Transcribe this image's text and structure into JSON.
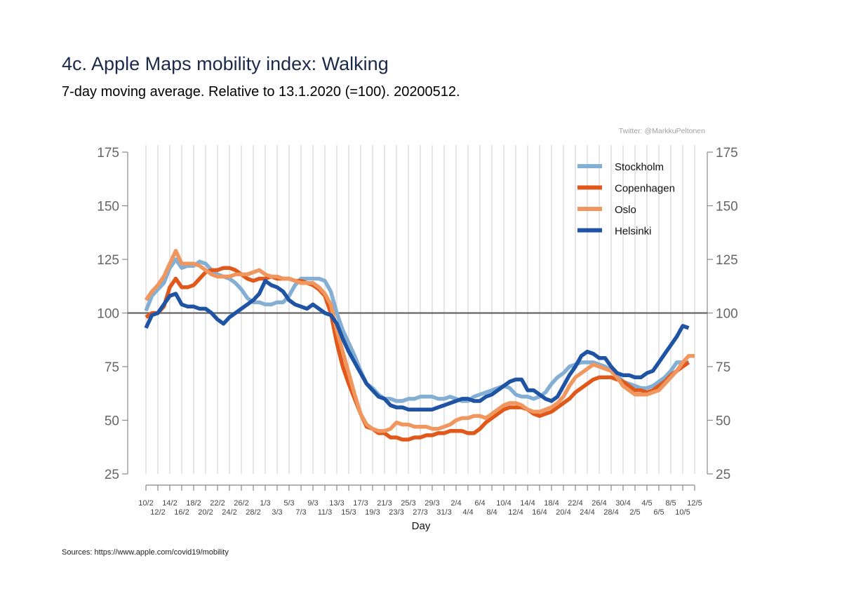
{
  "title": "4c. Apple Maps mobility index: Walking",
  "subtitle": "7-day moving average. Relative to 13.1.2020 (=100). 20200512.",
  "credit": "Twitter: @MarkkuPeltonen",
  "source": "Sources: https://www.apple.com/covid19/mobility",
  "chart_data": {
    "type": "line",
    "xlabel": "Day",
    "ylabel": "",
    "ylim": [
      25,
      175
    ],
    "yticks": [
      25,
      50,
      75,
      100,
      125,
      150,
      175
    ],
    "reference_line": 100,
    "grid": "vertical",
    "legend_position": "top-right",
    "x": [
      "10/2",
      "11/2",
      "12/2",
      "13/2",
      "14/2",
      "15/2",
      "16/2",
      "17/2",
      "18/2",
      "19/2",
      "20/2",
      "21/2",
      "22/2",
      "23/2",
      "24/2",
      "25/2",
      "26/2",
      "27/2",
      "28/2",
      "29/2",
      "1/3",
      "2/3",
      "3/3",
      "4/3",
      "5/3",
      "6/3",
      "7/3",
      "8/3",
      "9/3",
      "10/3",
      "11/3",
      "12/3",
      "13/3",
      "14/3",
      "15/3",
      "16/3",
      "17/3",
      "18/3",
      "19/3",
      "20/3",
      "21/3",
      "22/3",
      "23/3",
      "24/3",
      "25/3",
      "26/3",
      "27/3",
      "28/3",
      "29/3",
      "30/3",
      "31/3",
      "1/4",
      "2/4",
      "3/4",
      "4/4",
      "5/4",
      "6/4",
      "7/4",
      "8/4",
      "9/4",
      "10/4",
      "11/4",
      "12/4",
      "13/4",
      "14/4",
      "15/4",
      "16/4",
      "17/4",
      "18/4",
      "19/4",
      "20/4",
      "21/4",
      "22/4",
      "23/4",
      "24/4",
      "25/4",
      "26/4",
      "27/4",
      "28/4",
      "29/4",
      "30/4",
      "1/5",
      "2/5",
      "3/5",
      "4/5",
      "5/5",
      "6/5",
      "7/5",
      "8/5",
      "9/5",
      "10/5",
      "11/5",
      "12/5"
    ],
    "x_tick_labels_upper": [
      "10/2",
      "14/2",
      "18/2",
      "22/2",
      "26/2",
      "1/3",
      "5/3",
      "9/3",
      "13/3",
      "17/3",
      "21/3",
      "25/3",
      "29/3",
      "2/4",
      "6/4",
      "10/4",
      "14/4",
      "18/4",
      "22/4",
      "26/4",
      "30/4",
      "4/5",
      "8/5",
      "12/5"
    ],
    "x_tick_labels_lower": [
      "12/2",
      "16/2",
      "20/2",
      "24/2",
      "28/2",
      "3/3",
      "7/3",
      "11/3",
      "15/3",
      "19/3",
      "23/3",
      "27/3",
      "31/3",
      "4/4",
      "8/4",
      "12/4",
      "16/4",
      "20/4",
      "24/4",
      "28/4",
      "2/5",
      "6/5",
      "10/5"
    ],
    "series": [
      {
        "name": "Stockholm",
        "color": "#82afd3",
        "values": [
          101,
          108,
          111,
          114,
          121,
          125,
          121,
          122,
          122,
          124,
          123,
          120,
          118,
          117,
          116,
          114,
          111,
          107,
          105,
          105,
          104,
          104,
          105,
          105,
          108,
          113,
          116,
          116,
          116,
          116,
          115,
          110,
          100,
          92,
          86,
          80,
          73,
          67,
          65,
          62,
          60,
          60,
          59,
          59,
          60,
          60,
          61,
          61,
          61,
          60,
          60,
          61,
          60,
          59,
          59,
          61,
          62,
          63,
          64,
          65,
          66,
          65,
          62,
          61,
          61,
          60,
          61,
          63,
          67,
          70,
          72,
          75,
          76,
          77,
          77,
          77,
          76,
          75,
          73,
          71,
          68,
          67,
          66,
          65,
          65,
          66,
          68,
          70,
          73,
          77,
          77,
          77,
          null
        ]
      },
      {
        "name": "Copenhagen",
        "color": "#e0581a",
        "values": [
          98,
          100,
          100,
          103,
          112,
          116,
          112,
          112,
          113,
          116,
          119,
          120,
          120,
          121,
          121,
          120,
          118,
          116,
          115,
          116,
          116,
          117,
          116,
          116,
          116,
          115,
          115,
          114,
          113,
          111,
          108,
          100,
          86,
          75,
          67,
          60,
          53,
          47,
          46,
          44,
          44,
          42,
          42,
          41,
          41,
          42,
          42,
          43,
          43,
          44,
          44,
          45,
          45,
          45,
          44,
          44,
          46,
          49,
          51,
          53,
          55,
          56,
          56,
          56,
          55,
          53,
          52,
          53,
          54,
          56,
          58,
          60,
          63,
          65,
          67,
          69,
          70,
          70,
          70,
          69,
          68,
          66,
          64,
          64,
          63,
          64,
          66,
          68,
          71,
          73,
          75,
          77,
          null
        ]
      },
      {
        "name": "Oslo",
        "color": "#f0975f",
        "values": [
          106,
          110,
          113,
          117,
          123,
          129,
          123,
          123,
          123,
          122,
          120,
          118,
          117,
          117,
          117,
          118,
          118,
          118,
          119,
          120,
          118,
          117,
          117,
          116,
          116,
          115,
          114,
          114,
          114,
          112,
          109,
          104,
          92,
          82,
          72,
          62,
          53,
          48,
          46,
          45,
          45,
          46,
          49,
          48,
          48,
          47,
          47,
          47,
          46,
          46,
          47,
          48,
          50,
          51,
          51,
          52,
          52,
          51,
          53,
          55,
          57,
          58,
          58,
          57,
          55,
          54,
          54,
          55,
          56,
          58,
          61,
          66,
          70,
          72,
          74,
          76,
          75,
          74,
          73,
          70,
          66,
          64,
          62,
          62,
          62,
          63,
          64,
          67,
          70,
          73,
          77,
          80,
          80
        ]
      },
      {
        "name": "Helsinki",
        "color": "#1f53a4",
        "values": [
          93,
          99,
          100,
          104,
          108,
          109,
          104,
          103,
          103,
          102,
          102,
          100,
          97,
          95,
          98,
          100,
          102,
          104,
          106,
          109,
          115,
          113,
          112,
          110,
          106,
          104,
          103,
          102,
          104,
          102,
          100,
          99,
          95,
          88,
          82,
          77,
          72,
          67,
          64,
          61,
          60,
          57,
          56,
          56,
          55,
          55,
          55,
          55,
          55,
          56,
          57,
          58,
          59,
          60,
          60,
          59,
          59,
          61,
          62,
          64,
          66,
          68,
          69,
          69,
          64,
          64,
          62,
          60,
          59,
          61,
          66,
          71,
          75,
          80,
          82,
          81,
          79,
          79,
          75,
          72,
          71,
          71,
          70,
          70,
          72,
          73,
          77,
          81,
          85,
          89,
          94,
          93,
          null
        ]
      }
    ]
  }
}
